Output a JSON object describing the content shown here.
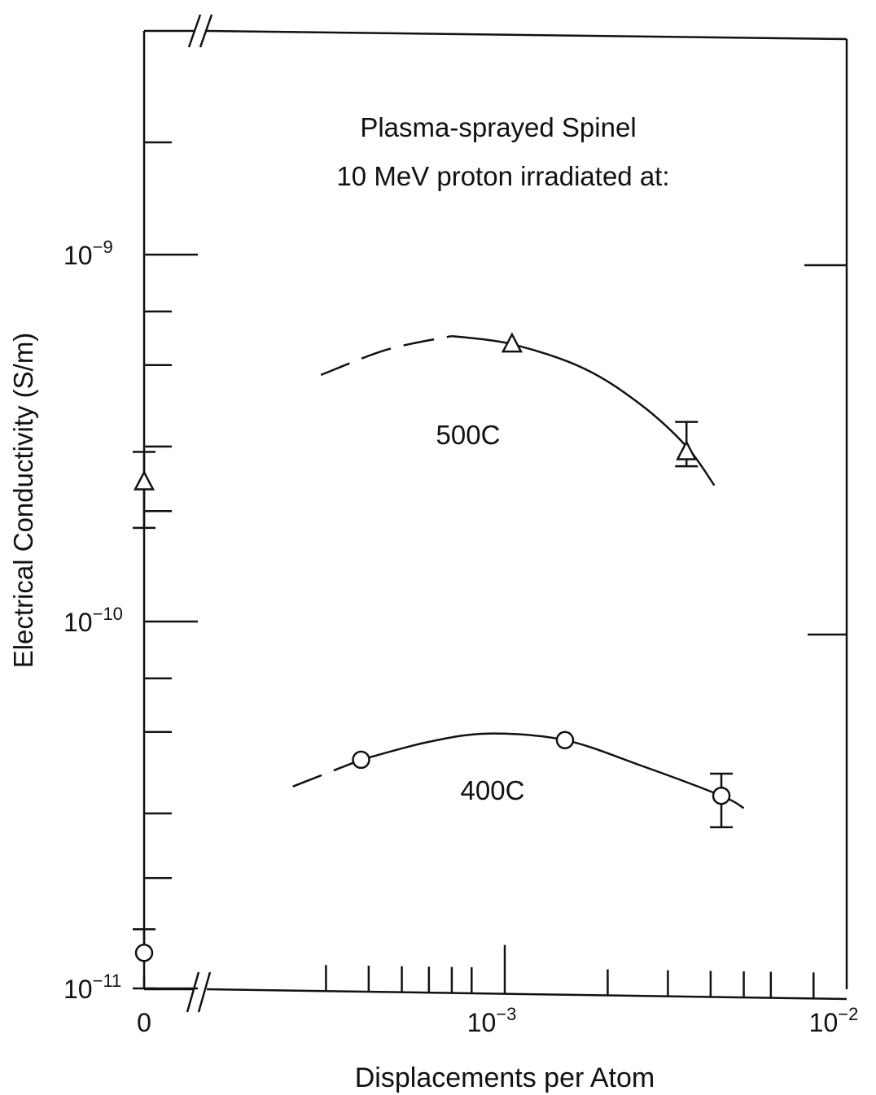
{
  "chart_data": {
    "type": "scatter",
    "title": "Plasma-sprayed Spinel",
    "subtitle": "10 MeV proton irradiated at:",
    "xlabel": "Displacements per Atom",
    "ylabel": "Electrical Conductivity (S/m)",
    "xscale": "log",
    "yscale": "log",
    "xlim": [
      0.0002,
      0.01
    ],
    "ylim": [
      1e-11,
      1e-09
    ],
    "x_tick_labels": [
      {
        "value": 0,
        "base": "0",
        "exp": ""
      },
      {
        "value": 0.001,
        "base": "10",
        "exp": "−3"
      },
      {
        "value": 0.01,
        "base": "10",
        "exp": "−2"
      }
    ],
    "y_tick_labels": [
      {
        "value": 1e-11,
        "base": "10",
        "exp": "−11"
      },
      {
        "value": 1e-10,
        "base": "10",
        "exp": "−10"
      },
      {
        "value": 1e-09,
        "base": "10",
        "exp": "−9"
      }
    ],
    "axis_break": true,
    "grid": false,
    "series": [
      {
        "name": "500C",
        "marker": "triangle",
        "unirradiated": {
          "y": 2.4e-10,
          "yerr_low": 1.8e-10,
          "yerr_high": 2.9e-10
        },
        "points": [
          {
            "x": 0.00105,
            "y": 5.7e-10
          },
          {
            "x": 0.0034,
            "y": 2.9e-10,
            "yerr_low": 2.65e-10,
            "yerr_high": 3.5e-10
          }
        ],
        "fit_dashed": [
          [
            0.00029,
            4.7e-10
          ],
          [
            0.00045,
            5.5e-10
          ],
          [
            0.0007,
            6e-10
          ]
        ],
        "fit_solid": [
          [
            0.0007,
            6e-10
          ],
          [
            0.00105,
            5.7e-10
          ],
          [
            0.0017,
            4.9e-10
          ],
          [
            0.0025,
            3.9e-10
          ],
          [
            0.0034,
            3e-10
          ],
          [
            0.0041,
            2.35e-10
          ]
        ]
      },
      {
        "name": "400C",
        "marker": "circle",
        "unirradiated": {
          "y": 1.25e-11,
          "yerr_low": 1e-11,
          "yerr_high": 1.45e-11
        },
        "points": [
          {
            "x": 0.00038,
            "y": 4.2e-11
          },
          {
            "x": 0.0015,
            "y": 4.75e-11
          },
          {
            "x": 0.0043,
            "y": 3.35e-11,
            "yerr_low": 2.75e-11,
            "yerr_high": 3.85e-11
          }
        ],
        "fit_dashed": [
          [
            0.00024,
            3.55e-11
          ],
          [
            0.00031,
            3.9e-11
          ],
          [
            0.00038,
            4.2e-11
          ]
        ],
        "fit_solid": [
          [
            0.00038,
            4.2e-11
          ],
          [
            0.0006,
            4.7e-11
          ],
          [
            0.0009,
            4.95e-11
          ],
          [
            0.0015,
            4.75e-11
          ],
          [
            0.0025,
            4.05e-11
          ],
          [
            0.0043,
            3.35e-11
          ],
          [
            0.005,
            3.1e-11
          ]
        ]
      }
    ]
  }
}
